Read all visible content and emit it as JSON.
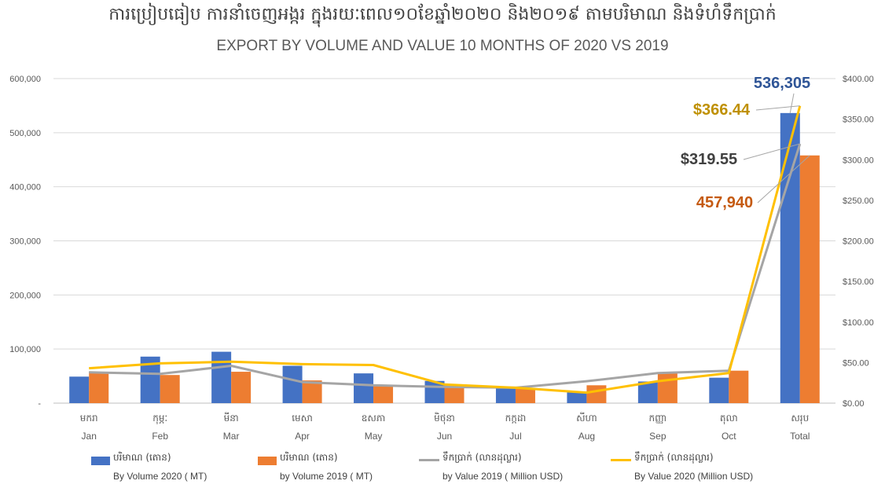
{
  "title_km": "ការប្រៀបធៀប ការនាំចេញអង្ករ ក្នុងរយៈពេល១០ខែឆ្នាំ២០២០ និង២០១៩ តាមបរិមាណ និងទំហំទឹកប្រាក់",
  "title_en": "EXPORT BY VOLUME AND VALUE 10 MONTHS OF 2020 VS 2019",
  "colors": {
    "vol2020": "#4472C4",
    "vol2019": "#ED7D31",
    "val2019": "#A5A5A5",
    "val2020": "#FFC000",
    "grid": "#D9D9D9",
    "callout_vol2020": "#2F5597",
    "callout_val2020": "#BF9000",
    "callout_val2019": "#404040",
    "callout_vol2019": "#C55A11"
  },
  "legend": [
    {
      "km": "បរិមាណ (តោន)",
      "en": "By Volume 2020 ( MT)"
    },
    {
      "km": "បរិមាណ (តោន)",
      "en": "by Volume 2019 ( MT)"
    },
    {
      "km": "ទឹកប្រាក់ (លានដុល្លារ)",
      "en": "by Value 2019 ( Million USD)"
    },
    {
      "km": "ទឹកប្រាក់ (លានដុល្លារ)",
      "en": "By Value 2020 (Million USD)"
    }
  ],
  "chart_data": {
    "type": "bar",
    "categories_km": [
      "មករា",
      "កុម្ភៈ",
      "មីនា",
      "មេសា",
      "ឧសភា",
      "មិថុនា",
      "កក្កដា",
      "សីហា",
      "កញ្ញា",
      "តុលា",
      "សរុប"
    ],
    "categories": [
      "Jan",
      "Feb",
      "Mar",
      "Apr",
      "May",
      "Jun",
      "Jul",
      "Aug",
      "Sep",
      "Oct",
      "Total"
    ],
    "y_left": {
      "ylim": [
        0,
        600000
      ],
      "ticks": [
        0,
        100000,
        200000,
        300000,
        400000,
        500000,
        600000
      ],
      "tick_labels": [
        "-",
        "100,000",
        "200,000",
        "300,000",
        "400,000",
        "500,000",
        "600,000"
      ]
    },
    "y_right": {
      "ylim": [
        0,
        400
      ],
      "ticks": [
        0,
        50,
        100,
        150,
        200,
        250,
        300,
        350,
        400
      ],
      "tick_labels": [
        "$0.00",
        "$50.00",
        "$100.00",
        "$150.00",
        "$200.00",
        "$250.00",
        "$300.00",
        "$350.00",
        "$400.00"
      ]
    },
    "grid": true,
    "legend_position": "bottom",
    "series": [
      {
        "name": "By Volume 2020 ( MT)",
        "type": "bar",
        "axis": "left",
        "values": [
          49000,
          86000,
          95000,
          69000,
          55000,
          41000,
          29000,
          20000,
          40000,
          47000,
          536305
        ]
      },
      {
        "name": "by Volume 2019 ( MT)",
        "type": "bar",
        "axis": "left",
        "values": [
          58000,
          52000,
          58000,
          42000,
          34000,
          33000,
          28000,
          33000,
          55000,
          60000,
          457940
        ]
      },
      {
        "name": "by Value 2019 ( Million USD)",
        "type": "line",
        "axis": "right",
        "values": [
          38,
          36,
          46,
          26,
          22,
          20,
          19,
          27,
          37,
          40,
          319.55
        ]
      },
      {
        "name": "By Value 2020 (Million USD)",
        "type": "line",
        "axis": "right",
        "values": [
          43,
          49,
          51,
          48,
          47,
          23,
          19,
          13,
          27,
          37,
          366.44
        ]
      }
    ],
    "annotations": [
      {
        "text": "536,305",
        "series": "By Volume 2020 ( MT)",
        "category": "Total"
      },
      {
        "text": "$366.44",
        "series": "By Value 2020 (Million USD)",
        "category": "Total"
      },
      {
        "text": "$319.55",
        "series": "by Value 2019 ( Million USD)",
        "category": "Total"
      },
      {
        "text": "457,940",
        "series": "by Volume 2019 ( MT)",
        "category": "Total"
      }
    ]
  }
}
